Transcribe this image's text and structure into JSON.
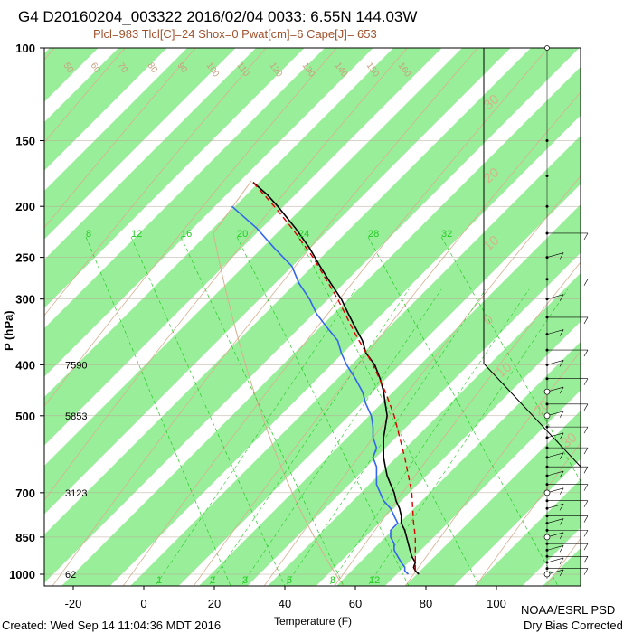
{
  "header": {
    "title": "G4 D20160204_003322 2016/02/04 0033:  6.55N 144.03W",
    "indices": "Plcl=983 Tlcl[C]=24 Shox=0 Pwat[cm]=6 Cape[J]= 653"
  },
  "footer": {
    "created": "Created: Wed Sep 14 11:04:36 MDT 2016",
    "credit_line1": "NOAA/ESRL PSD",
    "credit_line2": "Dry Bias Corrected"
  },
  "chart_data": {
    "type": "line",
    "title": "G4 D20160204_003322 2016/02/04 0033:  6.55N 144.03W",
    "subtitle": "Plcl=983 Tlcl[C]=24 Shox=0 Pwat[cm]=6 Cape[J]= 653",
    "xlabel": "Temperature (F)",
    "ylabel": "P (hPa)",
    "x_axis_range": [
      -30,
      120
    ],
    "y_axis_range": [
      1050,
      100
    ],
    "y_scale": "log",
    "x_ticks": [
      -20,
      0,
      20,
      40,
      60,
      80,
      100
    ],
    "x_tick_labels": [
      "-20",
      "0",
      "20",
      "40",
      "60",
      "80",
      "100"
    ],
    "y_ticks": [
      100,
      150,
      200,
      250,
      300,
      400,
      500,
      700,
      850,
      1000
    ],
    "y_tick_labels": [
      "100",
      "150",
      "200",
      "250",
      "300",
      "400",
      "500",
      "700",
      "850",
      "1000"
    ],
    "height_labels": [
      {
        "p": 400,
        "text": "7590"
      },
      {
        "p": 500,
        "text": "5853"
      },
      {
        "p": 700,
        "text": "3123"
      },
      {
        "p": 1000,
        "text": "62"
      }
    ],
    "mixing_ratio_labels": [
      "8",
      "12",
      "16",
      "20",
      "24",
      "28",
      "32"
    ],
    "mixing_ratio_bottom_labels": [
      "1",
      "2",
      "3",
      "5",
      "8",
      "12"
    ],
    "dry_adiabat_labels": [
      "50",
      "60",
      "70",
      "80",
      "90",
      "100",
      "110",
      "120",
      "130",
      "140",
      "150",
      "160"
    ],
    "theta_e_labels": [
      "30",
      "20",
      "10",
      "0",
      "10",
      "20",
      "30"
    ],
    "colors": {
      "temperature": "#000000",
      "dewpoint": "#3366ee",
      "parcel": "#dd0000",
      "green_band": "#99ee99",
      "dry_adiabat": "#d8b090",
      "mixing_ratio": "#22cc22",
      "wind": "#000000",
      "title_sub": "#a0522d"
    },
    "series": [
      {
        "key": "temperature",
        "points": [
          [
            1000,
            78
          ],
          [
            985,
            77
          ],
          [
            970,
            76.5
          ],
          [
            950,
            77
          ],
          [
            925,
            76
          ],
          [
            900,
            75.5
          ],
          [
            875,
            75
          ],
          [
            850,
            74.5
          ],
          [
            825,
            74
          ],
          [
            800,
            73
          ],
          [
            775,
            73
          ],
          [
            750,
            72.5
          ],
          [
            725,
            71.5
          ],
          [
            700,
            71
          ],
          [
            675,
            70
          ],
          [
            650,
            69
          ],
          [
            625,
            68.5
          ],
          [
            600,
            68
          ],
          [
            575,
            68
          ],
          [
            550,
            68
          ],
          [
            525,
            68.5
          ],
          [
            500,
            69
          ],
          [
            475,
            68.5
          ],
          [
            450,
            68
          ],
          [
            425,
            67
          ],
          [
            400,
            65.5
          ],
          [
            380,
            63
          ],
          [
            360,
            62
          ],
          [
            340,
            60
          ],
          [
            320,
            58
          ],
          [
            300,
            56
          ],
          [
            280,
            53
          ],
          [
            260,
            50
          ],
          [
            240,
            47
          ],
          [
            220,
            43
          ],
          [
            200,
            38
          ],
          [
            190,
            35
          ],
          [
            180,
            31
          ]
        ]
      },
      {
        "key": "dewpoint",
        "points": [
          [
            1000,
            75
          ],
          [
            985,
            74
          ],
          [
            970,
            74
          ],
          [
            950,
            73
          ],
          [
            925,
            72
          ],
          [
            900,
            71
          ],
          [
            875,
            71
          ],
          [
            850,
            70
          ],
          [
            825,
            70
          ],
          [
            800,
            72
          ],
          [
            775,
            71
          ],
          [
            750,
            70
          ],
          [
            725,
            68
          ],
          [
            700,
            67
          ],
          [
            675,
            66
          ],
          [
            650,
            66
          ],
          [
            625,
            66
          ],
          [
            600,
            65
          ],
          [
            575,
            66
          ],
          [
            550,
            65
          ],
          [
            525,
            65
          ],
          [
            500,
            64.5
          ],
          [
            475,
            63
          ],
          [
            450,
            62
          ],
          [
            425,
            60
          ],
          [
            400,
            57.5
          ],
          [
            380,
            56
          ],
          [
            360,
            55
          ],
          [
            340,
            52
          ],
          [
            320,
            49
          ],
          [
            300,
            47
          ],
          [
            280,
            44
          ],
          [
            260,
            42
          ],
          [
            240,
            37
          ],
          [
            220,
            32
          ],
          [
            200,
            25
          ]
        ]
      },
      {
        "key": "parcel",
        "points": [
          [
            983,
            77
          ],
          [
            900,
            77
          ],
          [
            850,
            77
          ],
          [
            800,
            76.5
          ],
          [
            700,
            76
          ],
          [
            600,
            74
          ],
          [
            500,
            71
          ],
          [
            450,
            68.5
          ],
          [
            400,
            65
          ],
          [
            350,
            60
          ],
          [
            300,
            55
          ],
          [
            250,
            48
          ],
          [
            220,
            42
          ],
          [
            200,
            37
          ],
          [
            180,
            31
          ]
        ]
      }
    ],
    "wind_barbs": "profile at x=605px from 100 to 1000 hPa",
    "grid": "skew-T log-P"
  }
}
